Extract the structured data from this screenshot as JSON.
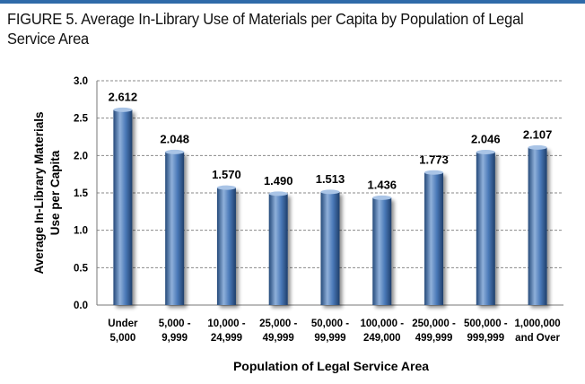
{
  "figure": {
    "title": "FIGURE 5. Average In-Library Use of Materials per Capita by Population of Legal Service Area"
  },
  "colors": {
    "rule": "#2f6aa9",
    "bar_light": "#8fb0da",
    "bar_mid": "#4a79b8",
    "bar_dark": "#24497a",
    "grid": "#8a8a8a"
  },
  "chart_data": {
    "type": "bar",
    "title": "FIGURE 5. Average In-Library Use of Materials per Capita by Population of Legal Service Area",
    "xlabel": "Population of Legal Service Area",
    "ylabel_lines": [
      "Average In-Library Materials",
      "Use per Capita"
    ],
    "ylim": [
      0,
      3.0
    ],
    "yticks": [
      "0.0",
      "0.5",
      "1.0",
      "1.5",
      "2.0",
      "2.5",
      "3.0"
    ],
    "grid": true,
    "categories": [
      [
        "Under",
        "5,000"
      ],
      [
        "5,000 -",
        "9,999"
      ],
      [
        "10,000 -",
        "24,999"
      ],
      [
        "25,000 -",
        "49,999"
      ],
      [
        "50,000 -",
        "99,999"
      ],
      [
        "100,000 -",
        "249,000"
      ],
      [
        "250,000 -",
        "499,999"
      ],
      [
        "500,000 -",
        "999,999"
      ],
      [
        "1,000,000",
        "and Over"
      ]
    ],
    "values": [
      2.612,
      2.048,
      1.57,
      1.49,
      1.513,
      1.436,
      1.773,
      2.046,
      2.107
    ],
    "value_labels": [
      "2.612",
      "2.048",
      "1.570",
      "1.490",
      "1.513",
      "1.436",
      "1.773",
      "2.046",
      "2.107"
    ]
  }
}
